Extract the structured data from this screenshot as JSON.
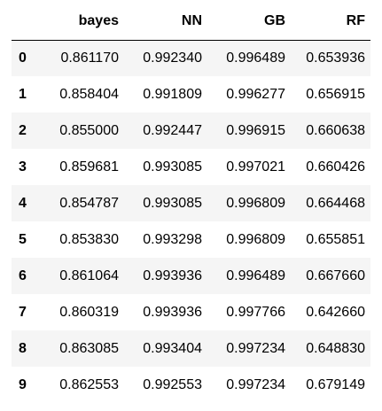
{
  "table": {
    "index_header": "",
    "columns": [
      "bayes",
      "NN",
      "GB",
      "RF"
    ],
    "rows": [
      {
        "index": "0",
        "values": [
          "0.861170",
          "0.992340",
          "0.996489",
          "0.653936"
        ]
      },
      {
        "index": "1",
        "values": [
          "0.858404",
          "0.991809",
          "0.996277",
          "0.656915"
        ]
      },
      {
        "index": "2",
        "values": [
          "0.855000",
          "0.992447",
          "0.996915",
          "0.660638"
        ]
      },
      {
        "index": "3",
        "values": [
          "0.859681",
          "0.993085",
          "0.997021",
          "0.660426"
        ]
      },
      {
        "index": "4",
        "values": [
          "0.854787",
          "0.993085",
          "0.996809",
          "0.664468"
        ]
      },
      {
        "index": "5",
        "values": [
          "0.853830",
          "0.993298",
          "0.996809",
          "0.655851"
        ]
      },
      {
        "index": "6",
        "values": [
          "0.861064",
          "0.993936",
          "0.996489",
          "0.667660"
        ]
      },
      {
        "index": "7",
        "values": [
          "0.860319",
          "0.993936",
          "0.997766",
          "0.642660"
        ]
      },
      {
        "index": "8",
        "values": [
          "0.863085",
          "0.993404",
          "0.997234",
          "0.648830"
        ]
      },
      {
        "index": "9",
        "values": [
          "0.862553",
          "0.992553",
          "0.997234",
          "0.679149"
        ]
      }
    ]
  },
  "colors": {
    "stripe": "#f5f5f5",
    "header_rule": "#000000",
    "text": "#000000"
  }
}
